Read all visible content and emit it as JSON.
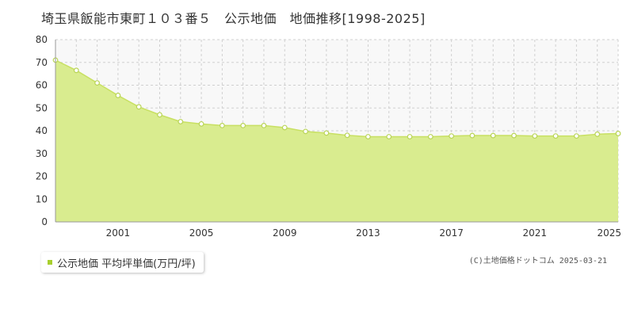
{
  "chart_data": {
    "type": "area",
    "title": "埼玉県飯能市東町１０３番５　公示地価　地価推移[1998-2025]",
    "x": [
      1998,
      1999,
      2000,
      2001,
      2002,
      2003,
      2004,
      2005,
      2006,
      2007,
      2008,
      2009,
      2010,
      2011,
      2012,
      2013,
      2014,
      2015,
      2016,
      2017,
      2018,
      2019,
      2020,
      2021,
      2022,
      2023,
      2024,
      2025
    ],
    "series": [
      {
        "name": "公示地価 平均坪単価(万円/坪)",
        "values": [
          71.0,
          66.5,
          61.0,
          55.5,
          50.5,
          47.0,
          44.0,
          43.0,
          42.3,
          42.3,
          42.3,
          41.4,
          39.7,
          39.0,
          38.0,
          37.4,
          37.4,
          37.4,
          37.4,
          37.7,
          37.9,
          37.9,
          37.9,
          37.7,
          37.7,
          37.7,
          38.5,
          38.8
        ]
      }
    ],
    "xticks": [
      "2001",
      "2005",
      "2009",
      "2013",
      "2017",
      "2021",
      "2025"
    ],
    "ylim": [
      0,
      80
    ],
    "yticks": [
      0,
      10,
      20,
      30,
      40,
      50,
      60,
      70,
      80
    ],
    "grid": true,
    "colors": {
      "fill": "#d9ec8f",
      "line": "#c8e062",
      "marker_edge": "#b9d456",
      "legend_swatch": "#a8cf2e"
    }
  },
  "legend": {
    "label": "公示地価 平均坪単価(万円/坪)"
  },
  "credit": "(C)土地価格ドットコム 2025-03-21"
}
